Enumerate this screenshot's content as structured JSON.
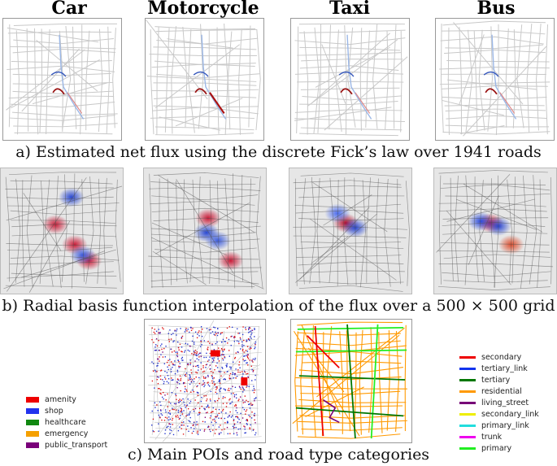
{
  "titles": [
    "Car",
    "Motorcycle",
    "Taxi",
    "Bus"
  ],
  "captions": {
    "a": "a) Estimated net flux using the discrete Fick’s law over 1941 roads",
    "b": "b) Radial basis function interpolation of the flux over a 500 × 500 grid",
    "c": "c) Main POIs and road type categories"
  },
  "poi_legend": [
    {
      "label": "amenity",
      "color": "#ee0000"
    },
    {
      "label": "shop",
      "color": "#2233ee"
    },
    {
      "label": "healthcare",
      "color": "#118811"
    },
    {
      "label": "emergency",
      "color": "#f5a000"
    },
    {
      "label": "public_transport",
      "color": "#7a007a"
    }
  ],
  "road_legend": [
    {
      "label": "secondary",
      "color": "#ee0000"
    },
    {
      "label": "tertiary_link",
      "color": "#1133ee"
    },
    {
      "label": "tertiary",
      "color": "#007700"
    },
    {
      "label": "residential",
      "color": "#ff9900"
    },
    {
      "label": "living_street",
      "color": "#770077"
    },
    {
      "label": "secondary_link",
      "color": "#eeee00"
    },
    {
      "label": "primary_link",
      "color": "#22dddd"
    },
    {
      "label": "trunk",
      "color": "#ee00ee"
    },
    {
      "label": "primary",
      "color": "#22ee22"
    }
  ]
}
